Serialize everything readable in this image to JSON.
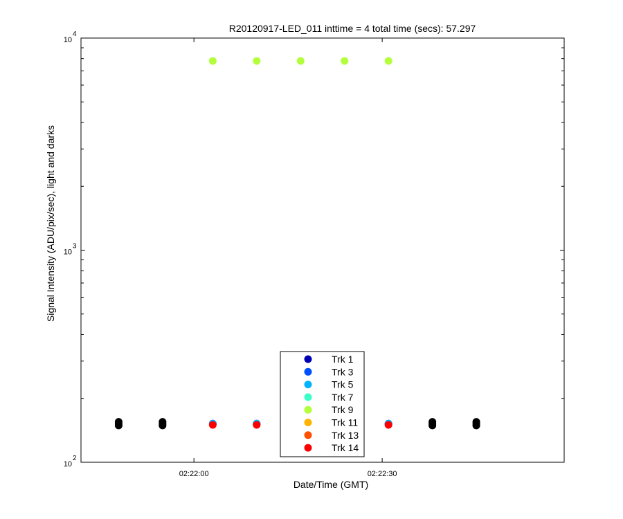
{
  "chart_data": {
    "type": "scatter",
    "title": "R20120917-LED_011 inttime = 4 total time (secs): 57.297",
    "xlabel": "Date/Time (GMT)",
    "ylabel": "Signal Intensity (ADU/pix/sec), light and darks",
    "y_scale": "log",
    "ylim": [
      100,
      10000
    ],
    "xlim": [
      "02:21:42",
      "02:22:59"
    ],
    "x_ticks": [
      "02:22:00",
      "02:22:30"
    ],
    "y_ticks": [
      {
        "base": "10",
        "exp": "2"
      },
      {
        "base": "10",
        "exp": "3"
      },
      {
        "base": "10",
        "exp": "4"
      }
    ],
    "series": [
      {
        "name": "Trk 1",
        "color": "#0000b4",
        "x": [
          "02:22:03",
          "02:22:10",
          "02:22:31"
        ],
        "y": [
          152,
          152,
          152
        ]
      },
      {
        "name": "Trk 3",
        "color": "#0050ff",
        "x": [
          "02:22:03",
          "02:22:10",
          "02:22:31"
        ],
        "y": [
          152,
          152,
          152
        ]
      },
      {
        "name": "Trk 5",
        "color": "#00b4ff",
        "x": [
          "02:22:03",
          "02:22:10",
          "02:22:31"
        ],
        "y": [
          152,
          152,
          152
        ]
      },
      {
        "name": "Trk 7",
        "color": "#3cffc8",
        "x": [],
        "y": []
      },
      {
        "name": "Trk 9",
        "color": "#b4ff3c",
        "x": [
          "02:22:03",
          "02:22:10",
          "02:22:17",
          "02:22:24",
          "02:22:31"
        ],
        "y": [
          7800,
          7800,
          7800,
          7800,
          7800
        ]
      },
      {
        "name": "Trk 11",
        "color": "#ffb400",
        "x": [],
        "y": []
      },
      {
        "name": "Trk 13",
        "color": "#ff5000",
        "x": [],
        "y": []
      },
      {
        "name": "Trk 14",
        "color": "#ff0000",
        "x": [
          "02:22:03",
          "02:22:10",
          "02:22:31"
        ],
        "y": [
          150,
          150,
          150
        ]
      },
      {
        "name": "",
        "color": "#000000",
        "x": [
          "02:21:48",
          "02:21:48",
          "02:21:48",
          "02:21:55",
          "02:21:55",
          "02:21:55",
          "02:22:38",
          "02:22:38",
          "02:22:38",
          "02:22:45",
          "02:22:45",
          "02:22:45"
        ],
        "y": [
          149,
          152,
          155,
          149,
          152,
          155,
          149,
          152,
          155,
          149,
          152,
          155
        ]
      }
    ],
    "legend_position": "bottom-center",
    "grid": false
  }
}
